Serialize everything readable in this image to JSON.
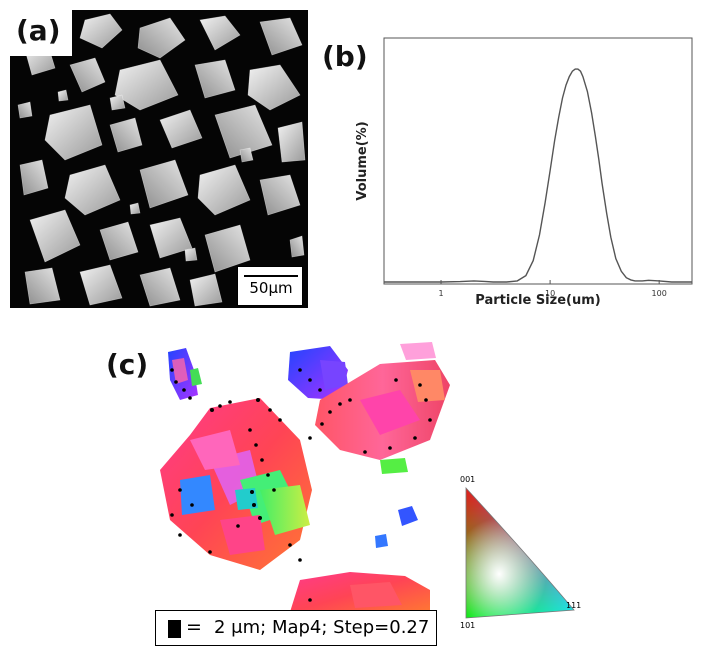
{
  "panels": {
    "a": {
      "label": "(a)",
      "scale_bar": "50μm"
    },
    "b": {
      "label": "(b)"
    },
    "c": {
      "label": "(c)",
      "caption": "2 μm; Map4; Step=0.27",
      "caption_eq": "=",
      "ipf_corners": {
        "top": "001",
        "left": "101",
        "right": "111"
      }
    }
  },
  "chart_data": {
    "type": "line",
    "xlabel": "Particle Size(um)",
    "ylabel": "Volume(%)",
    "x_scale": "log",
    "xlim": [
      0.3,
      200
    ],
    "ylim": [
      0,
      100
    ],
    "xticks": [
      1,
      10,
      100
    ],
    "xtick_labels": [
      "1",
      "10",
      "100"
    ],
    "yticks": [],
    "series": [
      {
        "x": [
          0.3,
          0.5,
          1,
          1.5,
          2,
          2.5,
          3,
          4,
          5,
          6,
          7,
          8,
          9,
          10,
          11,
          12,
          13,
          14,
          15,
          16,
          17,
          18,
          19,
          20,
          22,
          24,
          26,
          28,
          30,
          33,
          36,
          40,
          45,
          50,
          55,
          60,
          70,
          80,
          100,
          130,
          200
        ],
        "y": [
          0,
          0,
          0,
          0.2,
          0.5,
          0.3,
          0,
          0,
          0.5,
          3,
          10,
          22,
          37,
          52,
          66,
          77,
          86,
          92,
          96,
          98.5,
          99.5,
          99.5,
          98.5,
          96,
          89,
          79,
          68,
          57,
          46,
          32,
          21,
          11,
          5,
          2,
          1,
          0.5,
          0.5,
          0.8,
          0.5,
          0,
          0
        ]
      }
    ]
  }
}
